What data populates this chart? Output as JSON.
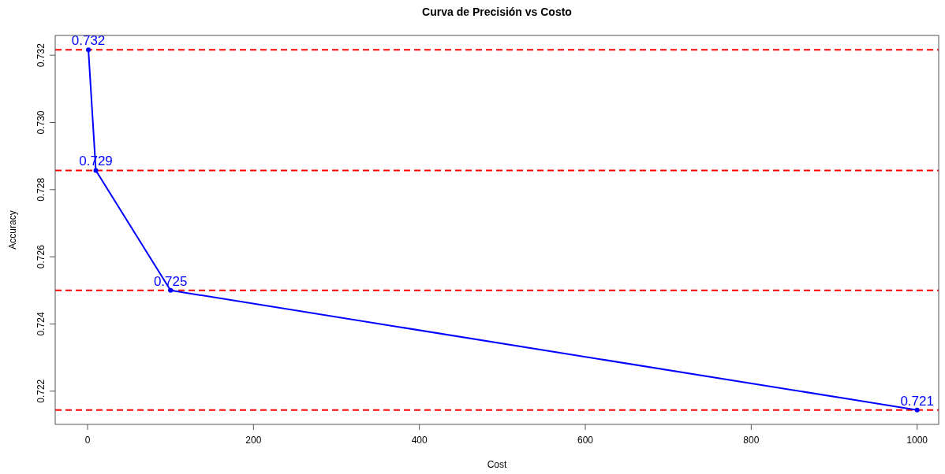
{
  "chart_data": {
    "type": "line",
    "title": "Curva de Precisión vs Costo",
    "xlabel": "Cost",
    "ylabel": "Accuracy",
    "x": [
      1,
      10,
      100,
      1000
    ],
    "series": [
      {
        "color": "#0000ff",
        "values": [
          0.73216,
          0.72857,
          0.725,
          0.72144
        ],
        "value_labels": [
          "0.732",
          "0.729",
          "0.725",
          "0.721"
        ]
      }
    ],
    "xlim": [
      -39,
      1026
    ],
    "xticks": [
      0,
      200,
      400,
      600,
      800,
      1000
    ],
    "ylim": [
      0.72101,
      0.73259
    ],
    "yticks": [
      "0.722",
      "0.724",
      "0.726",
      "0.728",
      "0.730",
      "0.732"
    ],
    "marker": "circle",
    "line_style": "solid",
    "ref_lines": [
      {
        "axis": "y",
        "value": 0.73216,
        "color": "#ff0000",
        "line_style": "dashed"
      },
      {
        "axis": "y",
        "value": 0.72857,
        "color": "#ff0000",
        "line_style": "dashed"
      },
      {
        "axis": "y",
        "value": 0.725,
        "color": "#ff0000",
        "line_style": "dashed"
      },
      {
        "axis": "y",
        "value": 0.72144,
        "color": "#ff0000",
        "line_style": "dashed"
      }
    ]
  }
}
